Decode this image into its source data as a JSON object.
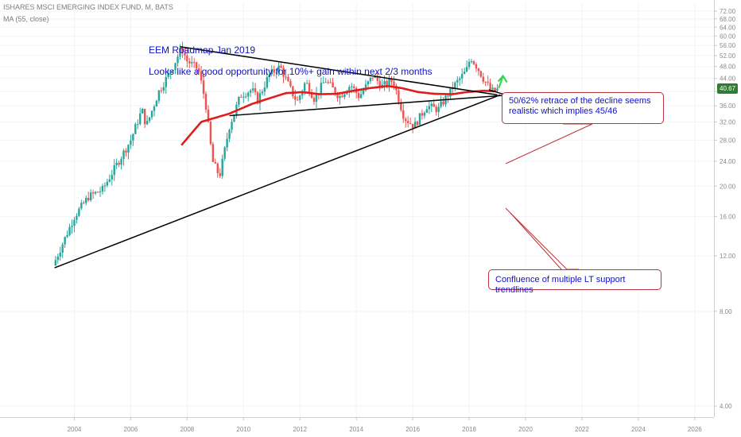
{
  "header": {
    "symbol_line": "ISHARES MSCI EMERGING INDEX FUND, M, BATS",
    "indicator_line": "MA (55, close)"
  },
  "notes": {
    "title": "EEM Roadmap Jan 2019",
    "subtitle": "Looks like a good opportunity for 10%+ gain within next 2/3 months"
  },
  "callouts": {
    "retrace": "50/62% retrace of the decline seems realistic which implies 45/46",
    "confluence": "Confluence of multiple LT support trendlines"
  },
  "last_price_label": "40.67",
  "colors": {
    "up": "#26a69a",
    "down": "#ef5350",
    "ma": "#e31b1b",
    "trendline": "#000000",
    "annotation_text": "#1010c8",
    "callout_border": "#b9353f",
    "target_arrow": "#39d353",
    "price_tag": "#2e7d32"
  },
  "chart_data": {
    "type": "candlestick",
    "interval": "monthly",
    "y_scale": "log",
    "xlim": [
      2003.0,
      2026.8
    ],
    "ylim": [
      3.6,
      80
    ],
    "y_ticks": [
      "72.00",
      "68.00",
      "64.00",
      "60.00",
      "56.00",
      "52.00",
      "48.00",
      "44.00",
      "40.00",
      "36.00",
      "32.00",
      "28.00",
      "24.00",
      "20.00",
      "16.00",
      "12.00",
      "8.00",
      "4.00"
    ],
    "y_tick_values": [
      72,
      68,
      64,
      60,
      56,
      52,
      48,
      44,
      40,
      36,
      32,
      28,
      24,
      20,
      16,
      12,
      8,
      4
    ],
    "x_ticks": [
      "2004",
      "2006",
      "2008",
      "2010",
      "2012",
      "2014",
      "2016",
      "2018",
      "2020",
      "2022",
      "2024",
      "2026"
    ],
    "x_tick_values": [
      2004,
      2006,
      2008,
      2010,
      2012,
      2014,
      2016,
      2018,
      2020,
      2022,
      2024,
      2026
    ],
    "price_anchors": [
      {
        "t": 2003.25,
        "v": 11.2
      },
      {
        "t": 2004.0,
        "v": 16.0
      },
      {
        "t": 2004.5,
        "v": 18.5
      },
      {
        "t": 2005.0,
        "v": 19.5
      },
      {
        "t": 2006.0,
        "v": 28.0
      },
      {
        "t": 2006.4,
        "v": 35.0
      },
      {
        "t": 2006.55,
        "v": 31.0
      },
      {
        "t": 2007.0,
        "v": 40.0
      },
      {
        "t": 2007.5,
        "v": 48.0
      },
      {
        "t": 2007.8,
        "v": 55.0
      },
      {
        "t": 2008.0,
        "v": 50.0
      },
      {
        "t": 2008.4,
        "v": 47.0
      },
      {
        "t": 2008.65,
        "v": 37.0
      },
      {
        "t": 2008.9,
        "v": 24.0
      },
      {
        "t": 2009.15,
        "v": 21.5
      },
      {
        "t": 2009.5,
        "v": 31.0
      },
      {
        "t": 2009.9,
        "v": 39.0
      },
      {
        "t": 2010.3,
        "v": 40.5
      },
      {
        "t": 2010.5,
        "v": 37.5
      },
      {
        "t": 2010.9,
        "v": 45.0
      },
      {
        "t": 2011.3,
        "v": 48.0
      },
      {
        "t": 2011.7,
        "v": 40.0
      },
      {
        "t": 2011.9,
        "v": 37.0
      },
      {
        "t": 2012.2,
        "v": 43.0
      },
      {
        "t": 2012.5,
        "v": 38.0
      },
      {
        "t": 2012.9,
        "v": 43.5
      },
      {
        "t": 2013.4,
        "v": 38.5
      },
      {
        "t": 2013.8,
        "v": 42.0
      },
      {
        "t": 2014.1,
        "v": 38.5
      },
      {
        "t": 2014.6,
        "v": 45.0
      },
      {
        "t": 2014.9,
        "v": 41.5
      },
      {
        "t": 2015.3,
        "v": 43.5
      },
      {
        "t": 2015.7,
        "v": 33.0
      },
      {
        "t": 2016.05,
        "v": 31.0
      },
      {
        "t": 2016.5,
        "v": 36.0
      },
      {
        "t": 2016.9,
        "v": 35.0
      },
      {
        "t": 2017.4,
        "v": 41.0
      },
      {
        "t": 2017.9,
        "v": 46.5
      },
      {
        "t": 2018.05,
        "v": 51.5
      },
      {
        "t": 2018.3,
        "v": 47.5
      },
      {
        "t": 2018.5,
        "v": 44.0
      },
      {
        "t": 2018.8,
        "v": 40.0
      },
      {
        "t": 2019.05,
        "v": 40.67
      }
    ],
    "ma55_anchors": [
      {
        "t": 2007.8,
        "v": 27.0
      },
      {
        "t": 2008.5,
        "v": 32.0
      },
      {
        "t": 2009.5,
        "v": 34.0
      },
      {
        "t": 2010.3,
        "v": 36.5
      },
      {
        "t": 2010.9,
        "v": 38.0
      },
      {
        "t": 2011.5,
        "v": 39.5
      },
      {
        "t": 2012.1,
        "v": 39.8
      },
      {
        "t": 2012.7,
        "v": 39.2
      },
      {
        "t": 2013.3,
        "v": 39.3
      },
      {
        "t": 2013.9,
        "v": 40.2
      },
      {
        "t": 2014.5,
        "v": 41.0
      },
      {
        "t": 2015.1,
        "v": 41.6
      },
      {
        "t": 2015.6,
        "v": 41.0
      },
      {
        "t": 2016.2,
        "v": 39.8
      },
      {
        "t": 2016.8,
        "v": 39.3
      },
      {
        "t": 2017.4,
        "v": 39.2
      },
      {
        "t": 2017.9,
        "v": 39.8
      },
      {
        "t": 2018.5,
        "v": 40.2
      },
      {
        "t": 2019.0,
        "v": 40.0
      }
    ],
    "trendlines": [
      {
        "name": "upper-resistance",
        "from": {
          "t": 2007.75,
          "v": 55.5
        },
        "to": {
          "t": 2019.0,
          "v": 39.0
        }
      },
      {
        "name": "lower-support-long",
        "from": {
          "t": 2003.3,
          "v": 11.0
        },
        "to": {
          "t": 2019.1,
          "v": 39.0
        }
      },
      {
        "name": "mid-support",
        "from": {
          "t": 2009.5,
          "v": 33.5
        },
        "to": {
          "t": 2019.8,
          "v": 39.2
        }
      },
      {
        "name": "short-extension",
        "from": {
          "t": 2018.7,
          "v": 40.5
        },
        "to": {
          "t": 2019.9,
          "v": 37.5
        }
      }
    ],
    "target_arrow": {
      "from": {
        "t": 2019.05,
        "v": 41.0
      },
      "to": {
        "t": 2019.2,
        "v": 44.8
      }
    }
  }
}
